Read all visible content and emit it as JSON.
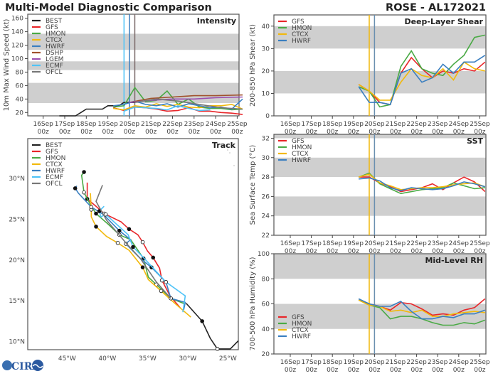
{
  "header": {
    "title": "Multi-Model Diagnostic Comparison",
    "storm": "ROSE - AL172021"
  },
  "colors": {
    "BEST": "#222222",
    "GFS": "#e8262a",
    "HMON": "#4aaa45",
    "CTCX": "#f2b90c",
    "HWRF": "#3a7fc0",
    "DSHP": "#a0522d",
    "LGEM": "#9b4fb0",
    "ECMF": "#4fc3f7",
    "OFCL": "#777777"
  },
  "x_ticks": [
    "16Sep 00z",
    "17Sep 00z",
    "18Sep 00z",
    "19Sep 00z",
    "20Sep 00z",
    "21Sep 00z",
    "22Sep 00z",
    "23Sep 00z",
    "24Sep 00z",
    "25Sep 00z"
  ],
  "chart_data": [
    {
      "id": "intensity",
      "type": "line",
      "title": "Intensity",
      "ylabel": "10m Max Wind Speed (kt)",
      "ylim": [
        15,
        166
      ],
      "yticks": [
        20,
        40,
        60,
        80,
        100,
        120,
        140,
        160
      ],
      "bands": [
        [
          34,
          64
        ],
        [
          83,
          96
        ],
        [
          113,
          137
        ]
      ],
      "vlines": [
        {
          "x": "19Sep 18z",
          "color": "#4fc3f7"
        },
        {
          "x": "20Sep 00z",
          "color": "#3a7fc0"
        },
        {
          "x": "20Sep 06z",
          "color": "#7a6a6a"
        }
      ],
      "legend": [
        "BEST",
        "GFS",
        "HMON",
        "CTCX",
        "HWRF",
        "DSHP",
        "LGEM",
        "ECMF",
        "OFCL"
      ],
      "x": [
        "19Sep 06z",
        "19Sep 18z",
        "20Sep 06z",
        "20Sep 18z",
        "21Sep 06z",
        "21Sep 18z",
        "22Sep 06z",
        "22Sep 18z",
        "23Sep 06z",
        "23Sep 18z",
        "24Sep 06z",
        "24Sep 18z",
        "25Sep 06z"
      ],
      "series": [
        {
          "name": "BEST",
          "x": [
            "16Sep 18z",
            "17Sep 00z",
            "17Sep 06z",
            "17Sep 12z",
            "17Sep 18z",
            "18Sep 00z",
            "18Sep 06z",
            "18Sep 12z",
            "18Sep 18z",
            "19Sep 00z",
            "19Sep 06z",
            "19Sep 12z",
            "19Sep 18z",
            "20Sep 00z",
            "20Sep 06z"
          ],
          "values": [
            15,
            15,
            15,
            15,
            20,
            25,
            25,
            25,
            25,
            30,
            30,
            30,
            35,
            35,
            35
          ]
        },
        {
          "name": "GFS",
          "values": [
            27,
            23,
            28,
            27,
            25,
            22,
            23,
            27,
            22,
            22,
            20,
            19,
            17
          ]
        },
        {
          "name": "HMON",
          "values": [
            28,
            30,
            57,
            36,
            38,
            52,
            32,
            40,
            28,
            26,
            26,
            24,
            25
          ]
        },
        {
          "name": "CTCX",
          "values": [
            26,
            24,
            30,
            28,
            33,
            29,
            32,
            28,
            27,
            30,
            30,
            32,
            25
          ]
        },
        {
          "name": "HWRF",
          "values": [
            30,
            32,
            37,
            32,
            30,
            33,
            28,
            33,
            30,
            27,
            28,
            25,
            40
          ]
        },
        {
          "name": "DSHP",
          "x": [
            "20Sep 00z",
            "20Sep 12z",
            "21Sep 00z",
            "22Sep 00z",
            "23Sep 00z",
            "24Sep 00z",
            "25Sep 06z"
          ],
          "values": [
            35,
            38,
            41,
            43,
            45,
            45,
            46
          ]
        },
        {
          "name": "LGEM",
          "x": [
            "20Sep 00z",
            "21Sep 00z",
            "22Sep 00z",
            "23Sep 00z",
            "24Sep 00z",
            "25Sep 06z"
          ],
          "values": [
            35,
            38,
            40,
            40,
            42,
            43
          ]
        },
        {
          "name": "ECMF",
          "x": [
            "19Sep 18z",
            "20Sep 06z",
            "20Sep 18z",
            "21Sep 06z",
            "21Sep 18z",
            "22Sep 06z",
            "22Sep 18z",
            "23Sep 06z",
            "23Sep 18z"
          ],
          "values": [
            22,
            28,
            27,
            26,
            24,
            30,
            26,
            23,
            24
          ]
        },
        {
          "name": "OFCL",
          "x": [
            "20Sep 06z",
            "21Sep 06z",
            "22Sep 06z",
            "23Sep 06z",
            "24Sep 06z",
            "25Sep 06z"
          ],
          "values": [
            35,
            40,
            37,
            32,
            27,
            25
          ]
        }
      ]
    },
    {
      "id": "shear",
      "type": "line",
      "title": "Deep-Layer Shear",
      "ylabel": "200-850 hPa Shear (kt)",
      "ylim": [
        0,
        45
      ],
      "yticks": [
        0,
        10,
        20,
        30,
        40
      ],
      "bands": [
        [
          10,
          20
        ],
        [
          30,
          40
        ]
      ],
      "vlines": [
        {
          "x": "19Sep 18z",
          "color": "#f2b90c"
        },
        {
          "x": "20Sep 00z",
          "color": "#6a8fb0"
        }
      ],
      "legend": [
        "GFS",
        "HMON",
        "CTCX",
        "HWRF"
      ],
      "x": [
        "19Sep 06z",
        "19Sep 18z",
        "20Sep 06z",
        "20Sep 18z",
        "21Sep 06z",
        "21Sep 18z",
        "22Sep 06z",
        "22Sep 18z",
        "23Sep 06z",
        "23Sep 18z",
        "24Sep 06z",
        "24Sep 18z",
        "25Sep 06z"
      ],
      "series": [
        {
          "name": "GFS",
          "values": [
            14,
            11,
            6,
            5,
            19,
            26,
            21,
            17,
            20,
            19,
            21,
            20,
            24
          ]
        },
        {
          "name": "HMON",
          "values": [
            13,
            11,
            4,
            5,
            22,
            29,
            21,
            19,
            18,
            23,
            27,
            35,
            36
          ]
        },
        {
          "name": "CTCX",
          "values": [
            14,
            11,
            7,
            7,
            15,
            21,
            18,
            17,
            21,
            16,
            24,
            21,
            20
          ]
        },
        {
          "name": "HWRF",
          "values": [
            13,
            6,
            6,
            5,
            19,
            21,
            15,
            17,
            23,
            19,
            24,
            24,
            27
          ]
        }
      ]
    },
    {
      "id": "sst",
      "type": "line",
      "title": "SST",
      "ylabel": "Sea Surface Temp (°C)",
      "ylim": [
        22,
        32.4
      ],
      "yticks": [
        22,
        24,
        26,
        28,
        30,
        32
      ],
      "bands": [
        [
          24,
          26
        ],
        [
          28,
          30
        ],
        [
          32,
          32.4
        ]
      ],
      "vlines": [
        {
          "x": "19Sep 18z",
          "color": "#f2b90c"
        },
        {
          "x": "20Sep 00z",
          "color": "#6a8fb0"
        }
      ],
      "legend": [
        "GFS",
        "HMON",
        "CTCX",
        "HWRF"
      ],
      "x": [
        "19Sep 06z",
        "19Sep 18z",
        "20Sep 06z",
        "20Sep 18z",
        "21Sep 06z",
        "21Sep 18z",
        "22Sep 06z",
        "22Sep 18z",
        "23Sep 06z",
        "23Sep 18z",
        "24Sep 06z",
        "24Sep 18z",
        "25Sep 06z"
      ],
      "series": [
        {
          "name": "GFS",
          "values": [
            28.0,
            28.0,
            27.4,
            27.0,
            26.5,
            26.7,
            26.9,
            27.3,
            26.7,
            27.4,
            28.0,
            27.5,
            26.5
          ]
        },
        {
          "name": "HMON",
          "values": [
            28.0,
            28.4,
            27.3,
            26.8,
            26.3,
            26.5,
            26.7,
            26.8,
            26.9,
            27.4,
            27.1,
            26.8,
            26.9
          ]
        },
        {
          "name": "CTCX",
          "values": [
            28.0,
            28.3,
            27.4,
            27.1,
            26.7,
            26.8,
            26.9,
            26.9,
            27.0,
            27.2,
            27.3,
            27.4,
            27.0
          ]
        },
        {
          "name": "HWRF",
          "values": [
            27.8,
            27.9,
            27.6,
            26.9,
            26.6,
            26.9,
            26.8,
            26.7,
            26.8,
            27.1,
            27.5,
            27.3,
            27.0
          ]
        }
      ]
    },
    {
      "id": "rh",
      "type": "line",
      "title": "Mid-Level RH",
      "ylabel": "700-500 hPa Humidity (%)",
      "ylim": [
        20,
        100
      ],
      "yticks": [
        20,
        40,
        60,
        80,
        100
      ],
      "bands": [
        [
          40,
          60
        ],
        [
          80,
          100
        ]
      ],
      "vlines": [
        {
          "x": "19Sep 18z",
          "color": "#f2b90c"
        },
        {
          "x": "20Sep 00z",
          "color": "#6a8fb0"
        }
      ],
      "legend": [
        "GFS",
        "HMON",
        "CTCX",
        "HWRF"
      ],
      "x": [
        "19Sep 06z",
        "19Sep 18z",
        "20Sep 06z",
        "20Sep 18z",
        "21Sep 06z",
        "21Sep 18z",
        "22Sep 06z",
        "22Sep 18z",
        "23Sep 06z",
        "23Sep 18z",
        "24Sep 06z",
        "24Sep 18z",
        "25Sep 06z"
      ],
      "series": [
        {
          "name": "GFS",
          "values": [
            63,
            60,
            58,
            55,
            61,
            60,
            56,
            51,
            52,
            51,
            55,
            57,
            64
          ]
        },
        {
          "name": "HMON",
          "values": [
            63,
            59,
            57,
            48,
            50,
            50,
            48,
            45,
            43,
            43,
            45,
            44,
            47
          ]
        },
        {
          "name": "CTCX",
          "values": [
            63,
            59,
            58,
            54,
            55,
            53,
            55,
            50,
            50,
            52,
            53,
            54,
            53
          ]
        },
        {
          "name": "HWRF",
          "values": [
            64,
            60,
            58,
            58,
            62,
            54,
            48,
            48,
            50,
            49,
            52,
            52,
            55
          ]
        }
      ]
    },
    {
      "id": "track",
      "type": "line",
      "title": "Track",
      "xlim": [
        -49.9,
        -23.7
      ],
      "ylim": [
        9.0,
        34.9
      ],
      "xticks": [
        {
          "v": -45,
          "label": "45°W"
        },
        {
          "v": -40,
          "label": "40°W"
        },
        {
          "v": -35,
          "label": "35°W"
        },
        {
          "v": -30,
          "label": "30°W"
        },
        {
          "v": -25,
          "label": "25°W"
        }
      ],
      "yticks": [
        {
          "v": 10,
          "label": "10°N"
        },
        {
          "v": 15,
          "label": "15°N"
        },
        {
          "v": 20,
          "label": "20°N"
        },
        {
          "v": 25,
          "label": "25°N"
        },
        {
          "v": 30,
          "label": "30°N"
        }
      ],
      "legend": [
        "BEST",
        "GFS",
        "HMON",
        "CTCX",
        "HWRF",
        "ECMF",
        "OFCL"
      ],
      "series": [
        {
          "name": "BEST",
          "points": [
            [
              -23.7,
              10.1
            ],
            [
              -24.7,
              9.1
            ],
            [
              -26.3,
              9.1
            ],
            [
              -27.2,
              10.4
            ],
            [
              -28.2,
              12.5
            ],
            [
              -30.2,
              14.7
            ]
          ]
        },
        {
          "name": "GFS",
          "points": [
            [
              -30.9,
              14.1
            ],
            [
              -32.2,
              15.6
            ],
            [
              -33.2,
              17.5
            ],
            [
              -33.5,
              19.0
            ],
            [
              -34.3,
              20.3
            ],
            [
              -35.0,
              21.1
            ],
            [
              -35.6,
              22.2
            ],
            [
              -36.2,
              23.1
            ],
            [
              -37.3,
              23.8
            ],
            [
              -38.3,
              24.7
            ],
            [
              -40.4,
              25.7
            ],
            [
              -41.4,
              26.6
            ],
            [
              -42.5,
              27.5
            ],
            [
              -42.5,
              29.5
            ]
          ]
        },
        {
          "name": "HMON",
          "points": [
            [
              -30.3,
              14.6
            ],
            [
              -32.1,
              15.3
            ],
            [
              -33.9,
              17.0
            ],
            [
              -34.9,
              17.9
            ],
            [
              -35.5,
              20.2
            ],
            [
              -37.1,
              22.5
            ],
            [
              -38.5,
              23.1
            ],
            [
              -39.9,
              24.4
            ],
            [
              -41.4,
              25.7
            ],
            [
              -42.0,
              26.6
            ],
            [
              -42.9,
              28.3
            ],
            [
              -43.2,
              30.4
            ],
            [
              -42.9,
              30.8
            ]
          ]
        },
        {
          "name": "CTCX",
          "points": [
            [
              -29.6,
              13.0
            ],
            [
              -31.5,
              14.6
            ],
            [
              -33.3,
              16.2
            ],
            [
              -34.9,
              17.6
            ],
            [
              -35.6,
              19.1
            ],
            [
              -37.3,
              21.2
            ],
            [
              -38.7,
              22.1
            ],
            [
              -40.1,
              22.9
            ],
            [
              -41.4,
              24.1
            ],
            [
              -42.0,
              25.3
            ],
            [
              -42.0,
              26.2
            ],
            [
              -42.1,
              28.2
            ]
          ]
        },
        {
          "name": "HWRF",
          "points": [
            [
              -30.5,
              13.9
            ],
            [
              -30.3,
              14.8
            ],
            [
              -32.1,
              15.3
            ],
            [
              -32.7,
              17.3
            ],
            [
              -34.5,
              19.1
            ],
            [
              -35.9,
              20.2
            ],
            [
              -37.7,
              22.0
            ],
            [
              -37.1,
              22.5
            ],
            [
              -38.5,
              23.6
            ],
            [
              -40.5,
              25.6
            ],
            [
              -42.0,
              26.5
            ],
            [
              -43.6,
              28.2
            ],
            [
              -44.0,
              28.8
            ],
            [
              -43.8,
              29.1
            ]
          ]
        },
        {
          "name": "ECMF",
          "points": [
            [
              -30.6,
              13.6
            ],
            [
              -30.3,
              15.6
            ],
            [
              -32.7,
              17.3
            ],
            [
              -35.4,
              20.2
            ],
            [
              -36.8,
              21.6
            ],
            [
              -37.4,
              23.1
            ],
            [
              -40.2,
              25.6
            ],
            [
              -40.8,
              25.3
            ],
            [
              -41.0,
              26.0
            ],
            [
              -40.4,
              26.6
            ]
          ]
        },
        {
          "name": "OFCL",
          "points": [
            [
              -32.1,
              15.3
            ],
            [
              -33.9,
              17.3
            ],
            [
              -35.9,
              20.2
            ],
            [
              -37.6,
              22.0
            ],
            [
              -40.1,
              24.9
            ],
            [
              -41.4,
              27.2
            ],
            [
              -40.6,
              29.2
            ]
          ]
        }
      ]
    }
  ],
  "logo": {
    "text": "CIRA"
  }
}
